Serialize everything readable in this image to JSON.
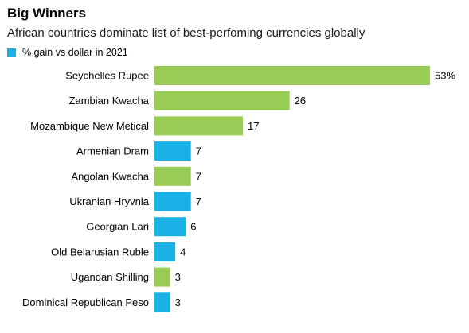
{
  "chart_data": {
    "type": "bar",
    "orientation": "horizontal",
    "title": "Big Winners",
    "subtitle": "African countries dominate list of best-perfoming currencies globally",
    "legend": {
      "label": "% gain vs dollar in 2021",
      "color": "#1ab2e6",
      "placement": "top-left"
    },
    "colors": {
      "african": "#99cc55",
      "other": "#1ab2e6"
    },
    "categories": [
      "Seychelles Rupee",
      "Zambian Kwacha",
      "Mozambique New Metical",
      "Armenian Dram",
      "Angolan Kwacha",
      "Ukranian Hryvnia",
      "Georgian Lari",
      "Old Belarusian Ruble",
      "Ugandan Shilling",
      "Dominical Republican Peso"
    ],
    "values": [
      53,
      26,
      17,
      7,
      7,
      7,
      6,
      4,
      3,
      3
    ],
    "value_labels": [
      "53%",
      "26",
      "17",
      "7",
      "7",
      "7",
      "6",
      "4",
      "3",
      "3"
    ],
    "groups": [
      "african",
      "african",
      "african",
      "other",
      "african",
      "other",
      "other",
      "other",
      "african",
      "other"
    ],
    "xlim": [
      0,
      53
    ],
    "grid": false
  }
}
